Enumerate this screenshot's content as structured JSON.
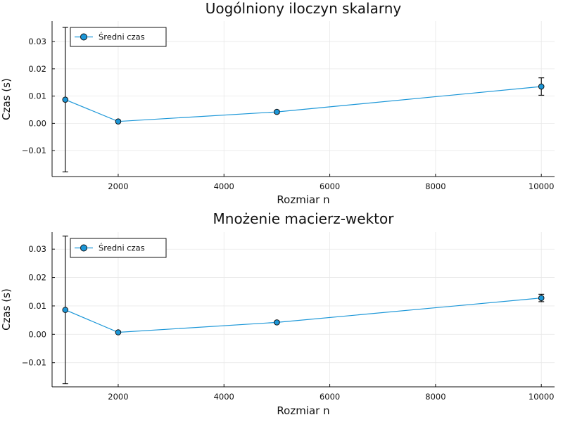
{
  "chart_data": [
    {
      "type": "line",
      "title": "Uogólniony iloczyn skalarny",
      "xlabel": "Rozmiar n",
      "ylabel": "Czas (s)",
      "xlim": [
        750,
        10250
      ],
      "ylim": [
        -0.0195,
        0.0375
      ],
      "xticks": [
        2000,
        4000,
        6000,
        8000,
        10000
      ],
      "xtick_labels": [
        "2000",
        "4000",
        "6000",
        "8000",
        "10000"
      ],
      "yticks": [
        -0.01,
        0,
        0.01,
        0.02,
        0.03
      ],
      "ytick_labels": [
        "−0.01",
        "0.00",
        "0.01",
        "0.02",
        "0.03"
      ],
      "grid": true,
      "legend_position": "top-left",
      "series": [
        {
          "name": "Średni czas",
          "color": "#1c97d8",
          "x": [
            1000,
            2000,
            5000,
            10000
          ],
          "y": [
            0.0087,
            0.0007,
            0.0042,
            0.0135
          ],
          "err": [
            0.0265,
            0.0003,
            0.0005,
            0.0032
          ]
        }
      ]
    },
    {
      "type": "line",
      "title": "Mnożenie macierz-wektor",
      "xlabel": "Rozmiar n",
      "ylabel": "Czas (s)",
      "xlim": [
        750,
        10250
      ],
      "ylim": [
        -0.0185,
        0.036
      ],
      "xticks": [
        2000,
        4000,
        6000,
        8000,
        10000
      ],
      "xtick_labels": [
        "2000",
        "4000",
        "6000",
        "8000",
        "10000"
      ],
      "yticks": [
        -0.01,
        0,
        0.01,
        0.02,
        0.03
      ],
      "ytick_labels": [
        "−0.01",
        "0.00",
        "0.01",
        "0.02",
        "0.03"
      ],
      "grid": true,
      "legend_position": "top-left",
      "series": [
        {
          "name": "Średni czas",
          "color": "#1c97d8",
          "x": [
            1000,
            2000,
            5000,
            10000
          ],
          "y": [
            0.0086,
            0.0007,
            0.0042,
            0.0128
          ],
          "err": [
            0.026,
            0.0003,
            0.0004,
            0.0013
          ]
        }
      ]
    }
  ]
}
